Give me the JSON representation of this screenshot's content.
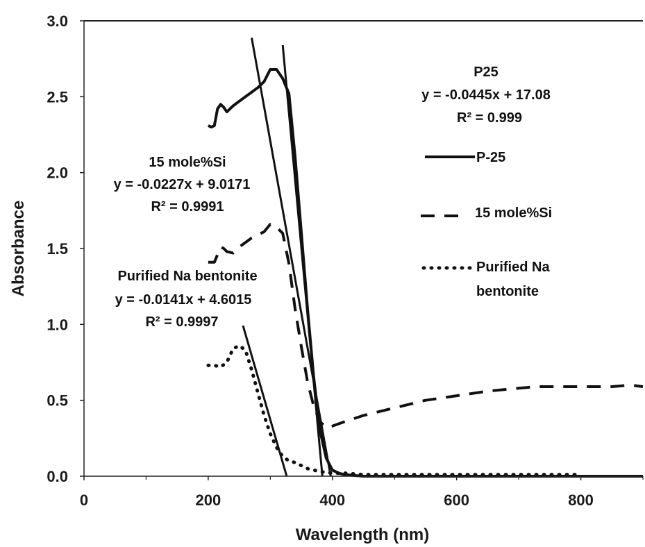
{
  "chart_data": {
    "type": "line",
    "xlabel": "Wavelength (nm)",
    "ylabel": "Absorbance",
    "xlim": [
      0,
      900
    ],
    "ylim": [
      0,
      3.0
    ],
    "xticks": [
      "0",
      "200",
      "400",
      "600",
      "800"
    ],
    "yticks": [
      "0.0",
      "0.5",
      "1.0",
      "1.5",
      "2.0",
      "2.5",
      "3.0"
    ],
    "grid": false,
    "legend_position": "right",
    "series": [
      {
        "name": "P-25",
        "style": "solid",
        "color": "#111111",
        "x": [
          200,
          205,
          210,
          215,
          220,
          225,
          230,
          240,
          250,
          260,
          270,
          280,
          290,
          300,
          310,
          320,
          330,
          340,
          350,
          360,
          370,
          380,
          390,
          400,
          410,
          420,
          450,
          500,
          600,
          700,
          800,
          900
        ],
        "y": [
          2.31,
          2.3,
          2.31,
          2.42,
          2.45,
          2.43,
          2.4,
          2.44,
          2.47,
          2.5,
          2.53,
          2.56,
          2.6,
          2.68,
          2.68,
          2.62,
          2.52,
          2.1,
          1.6,
          1.1,
          0.65,
          0.3,
          0.12,
          0.04,
          0.02,
          0.01,
          0.0,
          0.0,
          0.0,
          0.0,
          0.0,
          0.0
        ]
      },
      {
        "name": "15 mole%Si",
        "style": "dashed",
        "color": "#111111",
        "x": [
          200,
          210,
          220,
          225,
          230,
          240,
          250,
          260,
          270,
          280,
          290,
          300,
          310,
          320,
          330,
          340,
          350,
          360,
          370,
          380,
          390,
          400,
          420,
          450,
          500,
          550,
          600,
          650,
          700,
          730,
          760,
          800,
          850,
          880,
          900
        ],
        "y": [
          1.41,
          1.41,
          1.51,
          1.5,
          1.48,
          1.47,
          1.51,
          1.54,
          1.57,
          1.59,
          1.61,
          1.66,
          1.64,
          1.6,
          1.4,
          1.1,
          0.85,
          0.62,
          0.46,
          0.36,
          0.32,
          0.33,
          0.36,
          0.4,
          0.45,
          0.5,
          0.53,
          0.56,
          0.58,
          0.59,
          0.59,
          0.59,
          0.59,
          0.6,
          0.59
        ]
      },
      {
        "name": "Purified Na bentonite",
        "style": "dotted",
        "color": "#111111",
        "x": [
          200,
          210,
          220,
          230,
          240,
          250,
          260,
          270,
          280,
          290,
          300,
          310,
          320,
          330,
          340,
          350,
          360,
          380,
          400,
          420,
          450,
          500,
          600,
          700,
          800
        ],
        "y": [
          0.73,
          0.73,
          0.72,
          0.75,
          0.84,
          0.86,
          0.83,
          0.7,
          0.55,
          0.4,
          0.28,
          0.19,
          0.13,
          0.1,
          0.09,
          0.07,
          0.05,
          0.03,
          0.02,
          0.02,
          0.01,
          0.01,
          0.01,
          0.01,
          0.01
        ]
      }
    ],
    "fit_lines": [
      {
        "label": "P25",
        "slope": -0.0445,
        "intercept": 17.08,
        "x_range": [
          320,
          383.8
        ]
      },
      {
        "label": "15 mole%Si",
        "slope": -0.0227,
        "intercept": 9.0171,
        "x_range": [
          270,
          397.2
        ]
      },
      {
        "label": "Purified Na bentonite",
        "slope": -0.0141,
        "intercept": 4.6015,
        "x_range": [
          256,
          326.4
        ]
      }
    ],
    "annotations": [
      {
        "id": "p25",
        "lines": [
          "P25",
          "y = -0.0445x + 17.08",
          "R² = 0.999"
        ]
      },
      {
        "id": "si",
        "lines": [
          "15 mole%Si",
          "y = -0.0227x + 9.0171",
          "R² = 0.9991"
        ]
      },
      {
        "id": "bent",
        "lines": [
          "Purified Na bentonite",
          "y = -0.0141x + 4.6015",
          "R² = 0.9997"
        ]
      }
    ],
    "legend": [
      {
        "style": "solid",
        "lines": [
          "P-25"
        ]
      },
      {
        "style": "dashed",
        "lines": [
          "15 mole%Si"
        ]
      },
      {
        "style": "dotted",
        "lines": [
          "Purified Na",
          "bentonite"
        ]
      }
    ]
  }
}
